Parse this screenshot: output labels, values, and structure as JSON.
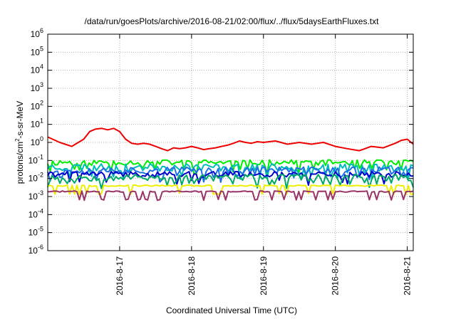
{
  "chart_data": {
    "type": "line",
    "title": "/data/run/goesPlots/archive/2016-08-21/02:00/flux/../flux/5daysEarthFluxes.txt",
    "xlabel": "Coordinated Universal Time (UTC)",
    "ylabel_parts": [
      "protons/cm",
      "2",
      "-s-sr-MeV"
    ],
    "y_scale": "log",
    "ylim": [
      1e-06,
      1000000.0
    ],
    "xlim": [
      "2016-08-16 00:00",
      "2016-08-21 02:00"
    ],
    "grid": true,
    "legend": "none",
    "y_ticks": [
      {
        "base": "10",
        "exp": "-6"
      },
      {
        "base": "10",
        "exp": "-5"
      },
      {
        "base": "10",
        "exp": "-4"
      },
      {
        "base": "10",
        "exp": "-3"
      },
      {
        "base": "10",
        "exp": "-2"
      },
      {
        "base": "10",
        "exp": "-1"
      },
      {
        "base": "10",
        "exp": "0"
      },
      {
        "base": "10",
        "exp": "1"
      },
      {
        "base": "10",
        "exp": "2"
      },
      {
        "base": "10",
        "exp": "3"
      },
      {
        "base": "10",
        "exp": "4"
      },
      {
        "base": "10",
        "exp": "5"
      },
      {
        "base": "10",
        "exp": "6"
      }
    ],
    "x_ticks": [
      {
        "label": "2016-8-17",
        "date": "2016-08-17 00:00"
      },
      {
        "label": "2016-8-18",
        "date": "2016-08-18 00:00"
      },
      {
        "label": "2016-8-19",
        "date": "2016-08-19 00:00"
      },
      {
        "label": "2016-8-20",
        "date": "2016-08-20 00:00"
      },
      {
        "label": "2016-8-21",
        "date": "2016-08-21 00:00"
      }
    ],
    "series": [
      {
        "color": "#ee0000",
        "x": [
          "2016-08-16 00:00",
          "2016-08-16 04:00",
          "2016-08-16 08:00",
          "2016-08-16 12:00",
          "2016-08-16 14:00",
          "2016-08-16 16:00",
          "2016-08-16 18:00",
          "2016-08-16 20:00",
          "2016-08-16 22:00",
          "2016-08-17 00:00",
          "2016-08-17 02:00",
          "2016-08-17 04:00",
          "2016-08-17 06:00",
          "2016-08-17 08:00",
          "2016-08-17 10:00",
          "2016-08-17 12:00",
          "2016-08-17 14:00",
          "2016-08-17 16:00",
          "2016-08-17 18:00",
          "2016-08-17 20:00",
          "2016-08-17 22:00",
          "2016-08-18 00:00",
          "2016-08-18 02:00",
          "2016-08-18 04:00",
          "2016-08-18 06:00",
          "2016-08-18 08:00",
          "2016-08-18 10:00",
          "2016-08-18 12:00",
          "2016-08-18 14:00",
          "2016-08-18 16:00",
          "2016-08-18 18:00",
          "2016-08-18 20:00",
          "2016-08-18 22:00",
          "2016-08-19 00:00",
          "2016-08-19 04:00",
          "2016-08-19 08:00",
          "2016-08-19 12:00",
          "2016-08-19 16:00",
          "2016-08-19 20:00",
          "2016-08-20 00:00",
          "2016-08-20 04:00",
          "2016-08-20 08:00",
          "2016-08-20 12:00",
          "2016-08-20 16:00",
          "2016-08-20 20:00",
          "2016-08-20 22:00",
          "2016-08-21 00:00",
          "2016-08-21 02:00"
        ],
        "values": [
          2.0,
          1.0,
          0.6,
          1.5,
          4.0,
          5.5,
          6.0,
          5.0,
          6.0,
          4.0,
          1.5,
          0.9,
          0.8,
          0.9,
          0.8,
          0.6,
          0.45,
          0.35,
          0.5,
          0.45,
          0.5,
          0.6,
          0.5,
          0.4,
          0.45,
          0.5,
          0.6,
          0.7,
          0.9,
          1.2,
          1.0,
          0.9,
          1.1,
          1.0,
          1.2,
          0.8,
          1.0,
          0.8,
          1.0,
          0.6,
          0.45,
          0.35,
          0.6,
          0.5,
          0.9,
          1.3,
          1.5,
          0.8
        ]
      },
      {
        "color": "#00ee00",
        "base": 0.08,
        "amp": 0.35,
        "seed": 11
      },
      {
        "color": "#00bbbb",
        "base": 0.045,
        "amp": 0.45,
        "seed": 23
      },
      {
        "color": "#1e6ee6",
        "base": 0.03,
        "amp": 0.45,
        "seed": 37
      },
      {
        "color": "#0000cc",
        "base": 0.018,
        "amp": 0.35,
        "seed": 41
      },
      {
        "color": "#00aa66",
        "base": 0.012,
        "amp": 0.4,
        "seed": 53
      },
      {
        "color": "#eeee00",
        "base": 0.004,
        "amp": 0.08,
        "seed": 67
      },
      {
        "color": "#993366",
        "base": 0.0019,
        "amp": 0.08,
        "seed": 71
      }
    ]
  }
}
